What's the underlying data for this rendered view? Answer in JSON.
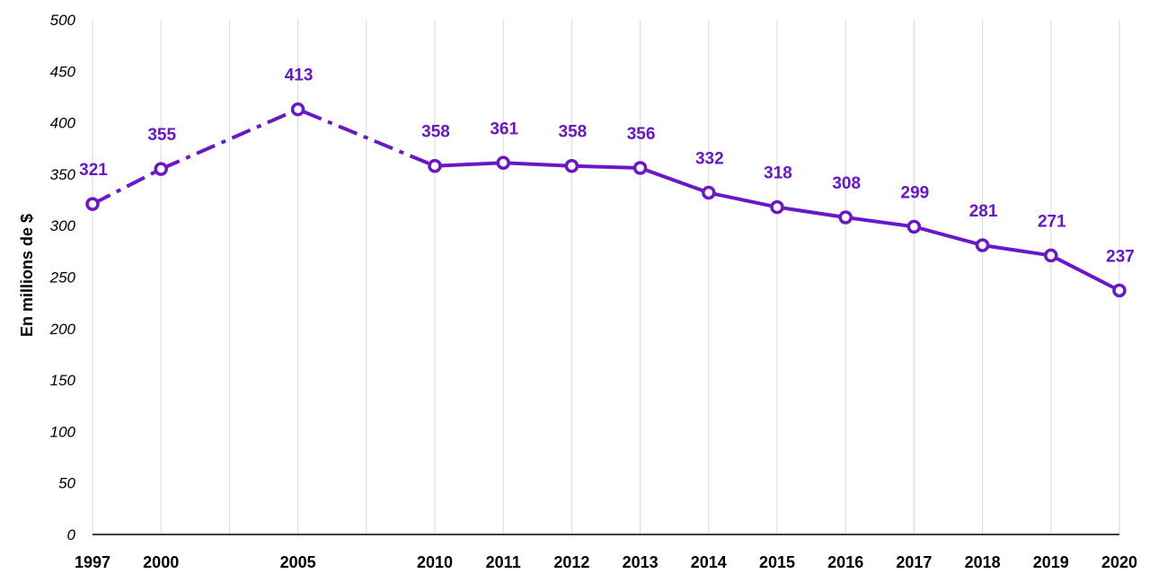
{
  "chart_data": {
    "type": "line",
    "title": "",
    "xlabel": "",
    "ylabel": "En millions de $",
    "ylim": [
      0,
      500
    ],
    "yticks": [
      0,
      50,
      100,
      150,
      200,
      250,
      300,
      350,
      400,
      450,
      500
    ],
    "categories": [
      "1997",
      "2000",
      "",
      "2005",
      "",
      "2010",
      "2011",
      "2012",
      "2013",
      "2014",
      "2015",
      "2016",
      "2017",
      "2018",
      "2019",
      "2020"
    ],
    "values": [
      321,
      355,
      null,
      413,
      null,
      358,
      361,
      358,
      356,
      332,
      318,
      308,
      299,
      281,
      271,
      237
    ],
    "line_style": {
      "dashed_between": [
        "1997",
        "2010"
      ],
      "solid_between": [
        "2010",
        "2020"
      ]
    },
    "grid": "vertical",
    "color": "#6a16c9"
  }
}
